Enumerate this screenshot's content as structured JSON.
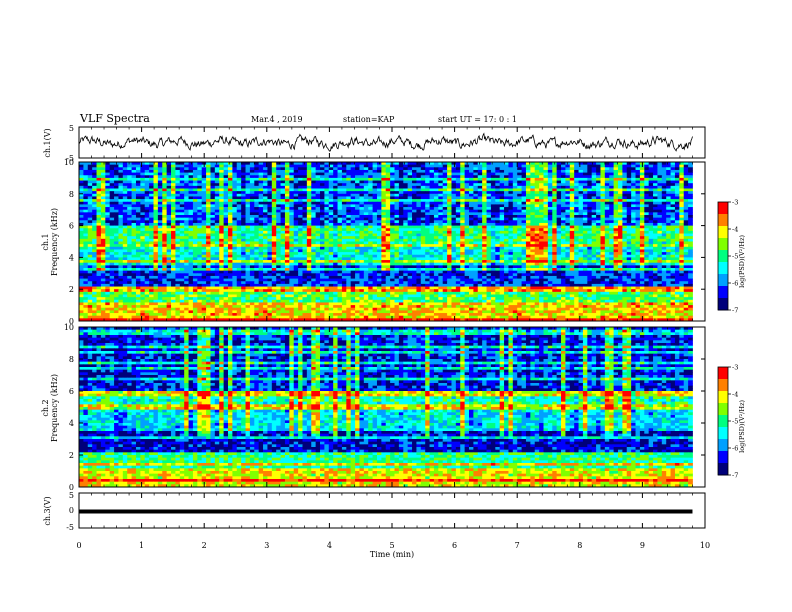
{
  "header": {
    "title": "VLF Spectra",
    "date": "Mar.4 , 2019",
    "station": "station=KAP",
    "start": "start UT = 17: 0 : 1"
  },
  "colors": {
    "colormap": [
      "#00007a",
      "#0000ff",
      "#00a0ff",
      "#00ffff",
      "#00ff80",
      "#80ff00",
      "#ffff00",
      "#ff8000",
      "#ff0000",
      "#ffffff"
    ],
    "trace": "#000000"
  },
  "chart_data": [
    {
      "type": "line",
      "panel": "ch1",
      "ylabel": "ch.1(V)",
      "ylim": [
        -5,
        5
      ],
      "yticks": [
        "5",
        "-5"
      ],
      "xlim": [
        0,
        10
      ],
      "series": [
        {
          "x_range": [
            0,
            9.8
          ],
          "mean": 0,
          "approx_amplitude": 2
        }
      ]
    },
    {
      "type": "heatmap",
      "panel": "ch1 spectrogram",
      "ylabel": "ch.1\nFrequency (kHz)",
      "ylim": [
        0,
        10
      ],
      "yticks": [
        "0",
        "2",
        "4",
        "6",
        "8",
        "10"
      ],
      "xlim": [
        0,
        9.8
      ],
      "colorbar": {
        "label": "log(PSD)(V²/Hz)",
        "range": [
          -7,
          -3
        ],
        "ticks": [
          "-3",
          "-4",
          "-5",
          "-6",
          "-7"
        ]
      }
    },
    {
      "type": "heatmap",
      "panel": "ch2 spectrogram",
      "ylabel": "ch.2\nFrequency (kHz)",
      "ylim": [
        0,
        10
      ],
      "yticks": [
        "0",
        "2",
        "4",
        "6",
        "8",
        "10"
      ],
      "xlim": [
        0,
        9.8
      ],
      "colorbar": {
        "label": "log(PSD)(V²/Hz)",
        "range": [
          -7,
          -3
        ],
        "ticks": [
          "-3",
          "-4",
          "-5",
          "-6",
          "-7"
        ]
      }
    },
    {
      "type": "line",
      "panel": "ch3",
      "ylabel": "ch.3(V)",
      "ylim": [
        -5,
        5
      ],
      "yticks": [
        "5",
        "0",
        "-5"
      ],
      "xlim": [
        0,
        10
      ],
      "series": [
        {
          "x_range": [
            0,
            9.8
          ],
          "value": -0.3
        }
      ]
    },
    {
      "type": "axis",
      "xlabel": "Time (min)",
      "xticks": [
        "0",
        "1",
        "2",
        "3",
        "4",
        "5",
        "6",
        "7",
        "8",
        "9",
        "10"
      ]
    }
  ]
}
